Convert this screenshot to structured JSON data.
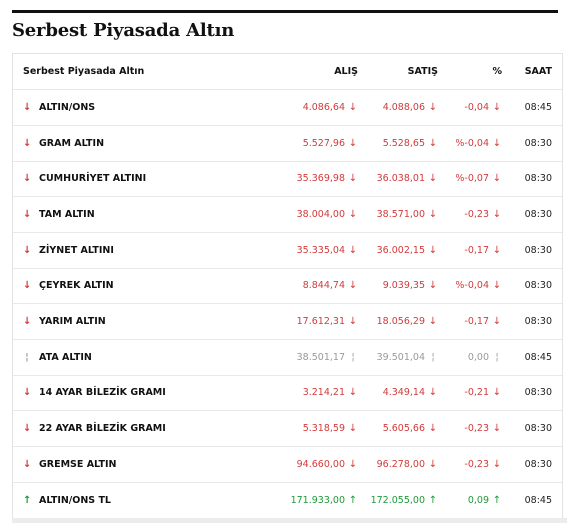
{
  "page": {
    "title": "Serbest Piyasada Altın"
  },
  "table": {
    "headers": {
      "name": "Serbest Piyasada Altın",
      "alis": "ALIŞ",
      "satis": "SATIŞ",
      "pct": "%",
      "saat": "SAAT"
    },
    "rows": [
      {
        "name": "ALTIN/ONS",
        "alis": "4.086,64",
        "satis": "4.088,06",
        "pct": "-0,04",
        "saat": "08:45",
        "direction": "down",
        "arrow": "↓"
      },
      {
        "name": "GRAM ALTIN",
        "alis": "5.527,96",
        "satis": "5.528,65",
        "pct": "%-0,04",
        "saat": "08:30",
        "direction": "down",
        "arrow": "↓"
      },
      {
        "name": "CUMHURİYET ALTINI",
        "alis": "35.369,98",
        "satis": "36.038,01",
        "pct": "%-0,07",
        "saat": "08:30",
        "direction": "down",
        "arrow": "↓"
      },
      {
        "name": "TAM ALTIN",
        "alis": "38.004,00",
        "satis": "38.571,00",
        "pct": "-0,23",
        "saat": "08:30",
        "direction": "down",
        "arrow": "↓"
      },
      {
        "name": "ZİYNET ALTINI",
        "alis": "35.335,04",
        "satis": "36.002,15",
        "pct": "-0,17",
        "saat": "08:30",
        "direction": "down",
        "arrow": "↓"
      },
      {
        "name": "ÇEYREK ALTIN",
        "alis": "8.844,74",
        "satis": "9.039,35",
        "pct": "%-0,04",
        "saat": "08:30",
        "direction": "down",
        "arrow": "↓"
      },
      {
        "name": "YARIM ALTIN",
        "alis": "17.612,31",
        "satis": "18.056,29",
        "pct": "-0,17",
        "saat": "08:30",
        "direction": "down",
        "arrow": "↓"
      },
      {
        "name": "ATA ALTIN",
        "alis": "38.501,17",
        "satis": "39.501,04",
        "pct": "0,00",
        "saat": "08:45",
        "direction": "neutral",
        "arrow": "¦"
      },
      {
        "name": "14 AYAR BİLEZİK GRAMI",
        "alis": "3.214,21",
        "satis": "4.349,14",
        "pct": "-0,21",
        "saat": "08:30",
        "direction": "down",
        "arrow": "↓"
      },
      {
        "name": "22 AYAR BİLEZİK GRAMI",
        "alis": "5.318,59",
        "satis": "5.605,66",
        "pct": "-0,23",
        "saat": "08:30",
        "direction": "down",
        "arrow": "↓"
      },
      {
        "name": "GREMSE ALTIN",
        "alis": "94.660,00",
        "satis": "96.278,00",
        "pct": "-0,23",
        "saat": "08:30",
        "direction": "down",
        "arrow": "↓"
      },
      {
        "name": "ALTIN/ONS TL",
        "alis": "171.933,00",
        "satis": "172.055,00",
        "pct": "0,09",
        "saat": "08:45",
        "direction": "up",
        "arrow": "↑"
      }
    ]
  },
  "colors": {
    "down": "#d23b3b",
    "up": "#1f9a3a",
    "neutral": "#9a9a9a"
  },
  "icons": {
    "down": "arrow-down-icon",
    "up": "arrow-up-icon",
    "neutral": "dash-icon"
  }
}
